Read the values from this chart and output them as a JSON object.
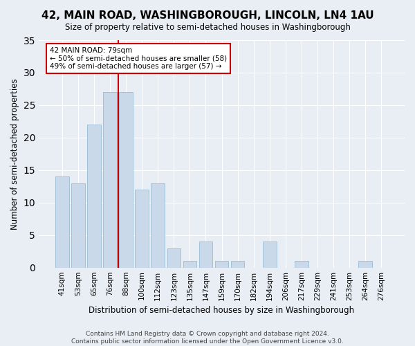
{
  "title": "42, MAIN ROAD, WASHINGBOROUGH, LINCOLN, LN4 1AU",
  "subtitle": "Size of property relative to semi-detached houses in Washingborough",
  "xlabel": "Distribution of semi-detached houses by size in Washingborough",
  "ylabel": "Number of semi-detached properties",
  "bar_color": "#c9d9ea",
  "bar_edge_color": "#8ab4d0",
  "categories": [
    "41sqm",
    "53sqm",
    "65sqm",
    "76sqm",
    "88sqm",
    "100sqm",
    "112sqm",
    "123sqm",
    "135sqm",
    "147sqm",
    "159sqm",
    "170sqm",
    "182sqm",
    "194sqm",
    "206sqm",
    "217sqm",
    "229sqm",
    "241sqm",
    "253sqm",
    "264sqm",
    "276sqm"
  ],
  "values": [
    14,
    13,
    22,
    27,
    27,
    12,
    13,
    3,
    1,
    4,
    1,
    1,
    0,
    4,
    0,
    1,
    0,
    0,
    0,
    1,
    0
  ],
  "vline_x": 3.5,
  "vline_color": "#cc0000",
  "annotation_text": "42 MAIN ROAD: 79sqm\n← 50% of semi-detached houses are smaller (58)\n49% of semi-detached houses are larger (57) →",
  "annotation_box_color": "white",
  "annotation_box_edge": "#cc0000",
  "footnote": "Contains HM Land Registry data © Crown copyright and database right 2024.\nContains public sector information licensed under the Open Government Licence v3.0.",
  "ylim": [
    0,
    35
  ],
  "yticks": [
    0,
    5,
    10,
    15,
    20,
    25,
    30,
    35
  ],
  "background_color": "#e8eef4",
  "grid_color": "white"
}
